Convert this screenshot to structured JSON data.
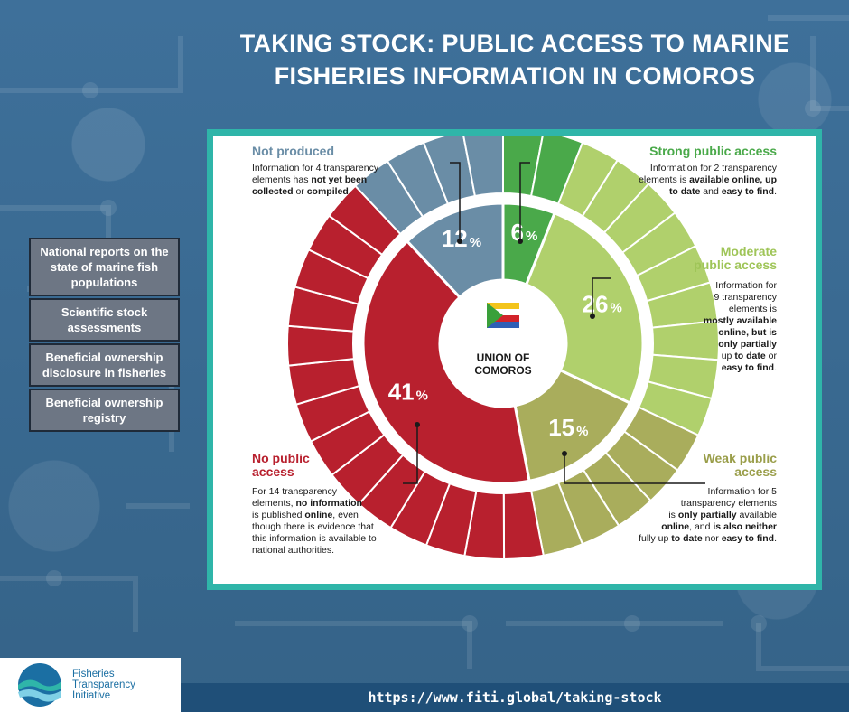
{
  "title_line1": "TAKING STOCK: PUBLIC ACCESS TO MARINE",
  "title_line2": "FISHERIES INFORMATION IN COMOROS",
  "side_items": [
    "National reports on the state of marine fish populations",
    "Scientific stock assessments",
    "Beneficial ownership disclosure in fisheries",
    "Beneficial ownership registry"
  ],
  "center_line1": "UNION OF",
  "center_line2": "COMOROS",
  "categories": {
    "not_produced": {
      "title": "Not produced",
      "desc": [
        "Information for 4 transparency",
        "elements has not yet been",
        "collected or compiled."
      ]
    },
    "strong": {
      "title": "Strong public access",
      "desc": [
        "Information for 2 transparency",
        "elements is available online, up",
        "to date and easy to find."
      ]
    },
    "moderate": {
      "title": [
        "Moderate",
        "public access"
      ],
      "desc": [
        "Information for",
        "9 transparency",
        "elements is",
        "mostly available",
        "online, but is",
        "only partially",
        "up to date or",
        "easy to find."
      ]
    },
    "weak": {
      "title": [
        "Weak public",
        "access"
      ],
      "desc": [
        "Information for 5",
        "transparency elements",
        "is only partially available",
        "online, and is also neither",
        "fully up to date nor easy to find."
      ]
    },
    "no_public": {
      "title": [
        "No public",
        "access"
      ],
      "desc": [
        "For 14 transparency",
        "elements, no information",
        "is published online, even",
        "though there is evidence that",
        "this information is available to",
        "national authorities."
      ]
    }
  },
  "footer_url": "https://www.fiti.global/taking-stock",
  "logo_text": [
    "Fisheries",
    "Transparency",
    "Initiative"
  ],
  "colors": {
    "strong": "#4aa94a",
    "moderate": "#b0d06c",
    "weak": "#a9ad5c",
    "no_public": "#b8202e",
    "not_produced": "#6a8da6",
    "frame": "#2fb5a9",
    "background": "#3d6d93"
  },
  "chart_data": {
    "type": "pie",
    "variant": "donut",
    "center_label": "UNION OF COMOROS",
    "series": [
      {
        "name": "Strong public access",
        "value": 6,
        "count": 2,
        "label": "6%"
      },
      {
        "name": "Moderate public access",
        "value": 26,
        "count": 9,
        "label": "26%"
      },
      {
        "name": "Weak public access",
        "value": 15,
        "count": 5,
        "label": "15%"
      },
      {
        "name": "No public access",
        "value": 41,
        "count": 14,
        "label": "41%"
      },
      {
        "name": "Not produced",
        "value": 12,
        "count": 4,
        "label": "12%"
      }
    ]
  }
}
